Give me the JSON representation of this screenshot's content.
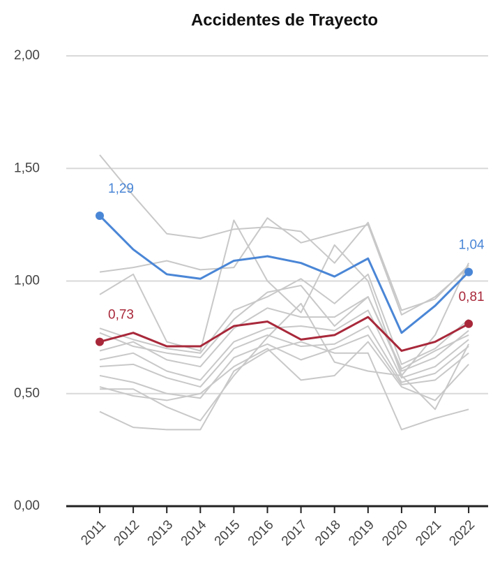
{
  "chart_data": {
    "type": "line",
    "title": "Accidentes de Trayecto",
    "x": [
      "2011",
      "2012",
      "2013",
      "2014",
      "2015",
      "2016",
      "2017",
      "2018",
      "2019",
      "2020",
      "2021",
      "2022"
    ],
    "ylim": [
      0,
      2
    ],
    "yticks": [
      {
        "value": 0,
        "label": "0,00"
      },
      {
        "value": 0.5,
        "label": "0,50"
      },
      {
        "value": 1,
        "label": "1,00"
      },
      {
        "value": 1.5,
        "label": "1,50"
      },
      {
        "value": 2,
        "label": "2,00"
      }
    ],
    "grid": true,
    "series": [
      {
        "color": "#c8c8c8",
        "values": [
          1.56,
          1.38,
          1.21,
          1.19,
          1.23,
          1.24,
          1.22,
          1.08,
          1.26,
          0.87,
          0.92,
          1.07
        ]
      },
      {
        "color": "#c8c8c8",
        "values": [
          1.04,
          1.06,
          1.09,
          1.05,
          1.06,
          1.28,
          1.17,
          1.21,
          1.25,
          0.85,
          0.93,
          1.06
        ]
      },
      {
        "color": "#c8c8c8",
        "values": [
          0.94,
          1.03,
          0.73,
          0.69,
          1.27,
          1.0,
          0.86,
          1.16,
          1.0,
          0.58,
          0.76,
          1.08
        ]
      },
      {
        "color": "#c8c8c8",
        "values": [
          0.79,
          0.74,
          0.7,
          0.68,
          0.87,
          0.93,
          1.01,
          0.9,
          1.03,
          0.63,
          0.7,
          0.83
        ]
      },
      {
        "color": "#c8c8c8",
        "values": [
          0.69,
          0.73,
          0.65,
          0.62,
          0.79,
          0.88,
          0.84,
          0.84,
          0.93,
          0.6,
          0.66,
          0.78
        ]
      },
      {
        "color": "#c8c8c8",
        "values": [
          0.65,
          0.68,
          0.6,
          0.56,
          0.73,
          0.79,
          0.8,
          0.78,
          0.87,
          0.57,
          0.62,
          0.74
        ]
      },
      {
        "color": "#c8c8c8",
        "values": [
          0.62,
          0.63,
          0.57,
          0.53,
          0.7,
          0.76,
          0.71,
          0.72,
          0.8,
          0.55,
          0.59,
          0.71
        ]
      },
      {
        "color": "#c8c8c8",
        "values": [
          0.58,
          0.55,
          0.5,
          0.48,
          0.66,
          0.72,
          0.65,
          0.7,
          0.76,
          0.54,
          0.56,
          0.68
        ]
      },
      {
        "color": "#c8c8c8",
        "values": [
          0.53,
          0.49,
          0.47,
          0.5,
          0.62,
          0.7,
          0.56,
          0.58,
          0.73,
          0.53,
          0.47,
          0.63
        ]
      },
      {
        "color": "#c8c8c8",
        "values": [
          0.42,
          0.35,
          0.34,
          0.34,
          0.6,
          0.69,
          0.73,
          0.68,
          0.68,
          0.34,
          0.39,
          0.43
        ]
      },
      {
        "color": "#c8c8c8",
        "values": [
          0.52,
          0.52,
          0.44,
          0.38,
          0.58,
          0.75,
          0.9,
          0.64,
          0.6,
          0.58,
          0.43,
          0.72
        ]
      },
      {
        "color": "#c8c8c8",
        "values": [
          0.77,
          0.71,
          0.68,
          0.66,
          0.83,
          0.95,
          0.98,
          0.8,
          0.93,
          0.61,
          0.69,
          0.76
        ]
      },
      {
        "color": "#4a86d6",
        "values": [
          1.29,
          1.14,
          1.03,
          1.01,
          1.09,
          1.11,
          1.08,
          1.02,
          1.1,
          0.77,
          0.89,
          1.04
        ],
        "value_labels": [
          "1,29",
          null,
          null,
          null,
          null,
          null,
          null,
          null,
          null,
          null,
          null,
          "1,04"
        ]
      },
      {
        "color": "#a8283a",
        "values": [
          0.73,
          0.77,
          0.71,
          0.71,
          0.8,
          0.82,
          0.74,
          0.76,
          0.84,
          0.69,
          0.73,
          0.81
        ],
        "value_labels": [
          "0,73",
          null,
          null,
          null,
          null,
          null,
          null,
          null,
          null,
          null,
          null,
          "0,81"
        ]
      }
    ]
  }
}
